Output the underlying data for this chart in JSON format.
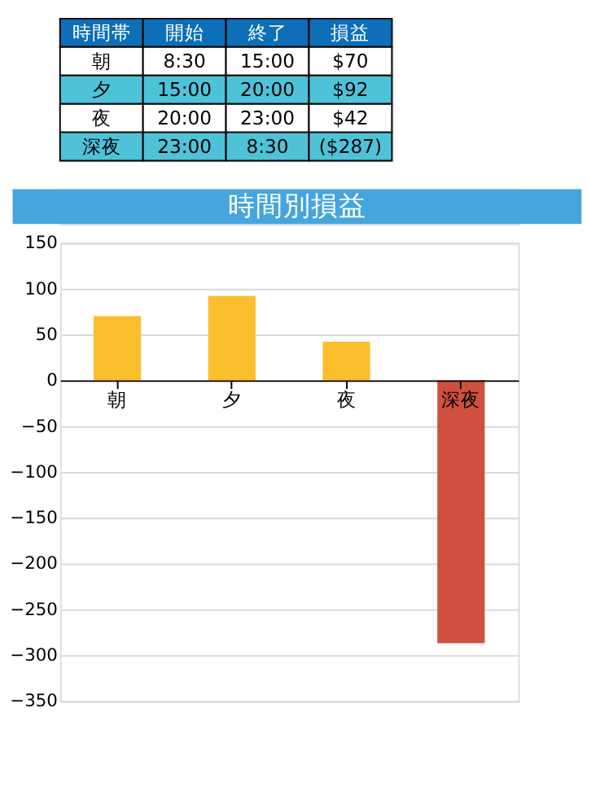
{
  "chart_data": [
    {
      "type": "other",
      "annotations": [
        "時間帯",
        "開始",
        "終了",
        "損益",
        "朝",
        "8:30",
        "15:00",
        "$70",
        "夕",
        "15:00",
        "20:00",
        "$92",
        "夜",
        "20:00",
        "23:00",
        "$42",
        "深夜",
        "23:00",
        "8:30",
        "($287)"
      ]
    },
    {
      "type": "bar",
      "title": "時間別損益",
      "categories": [
        "朝",
        "夕",
        "夜",
        "深夜"
      ],
      "values": [
        70,
        92,
        42,
        -287
      ],
      "colors": [
        "#fbbf2d",
        "#fbbf2d",
        "#fbbf2d",
        "#d05040"
      ],
      "ylim": [
        -350,
        150
      ],
      "yticks": [
        -350,
        -300,
        -250,
        -200,
        -150,
        -100,
        -50,
        0,
        50,
        100,
        150
      ],
      "grid": "y"
    }
  ]
}
